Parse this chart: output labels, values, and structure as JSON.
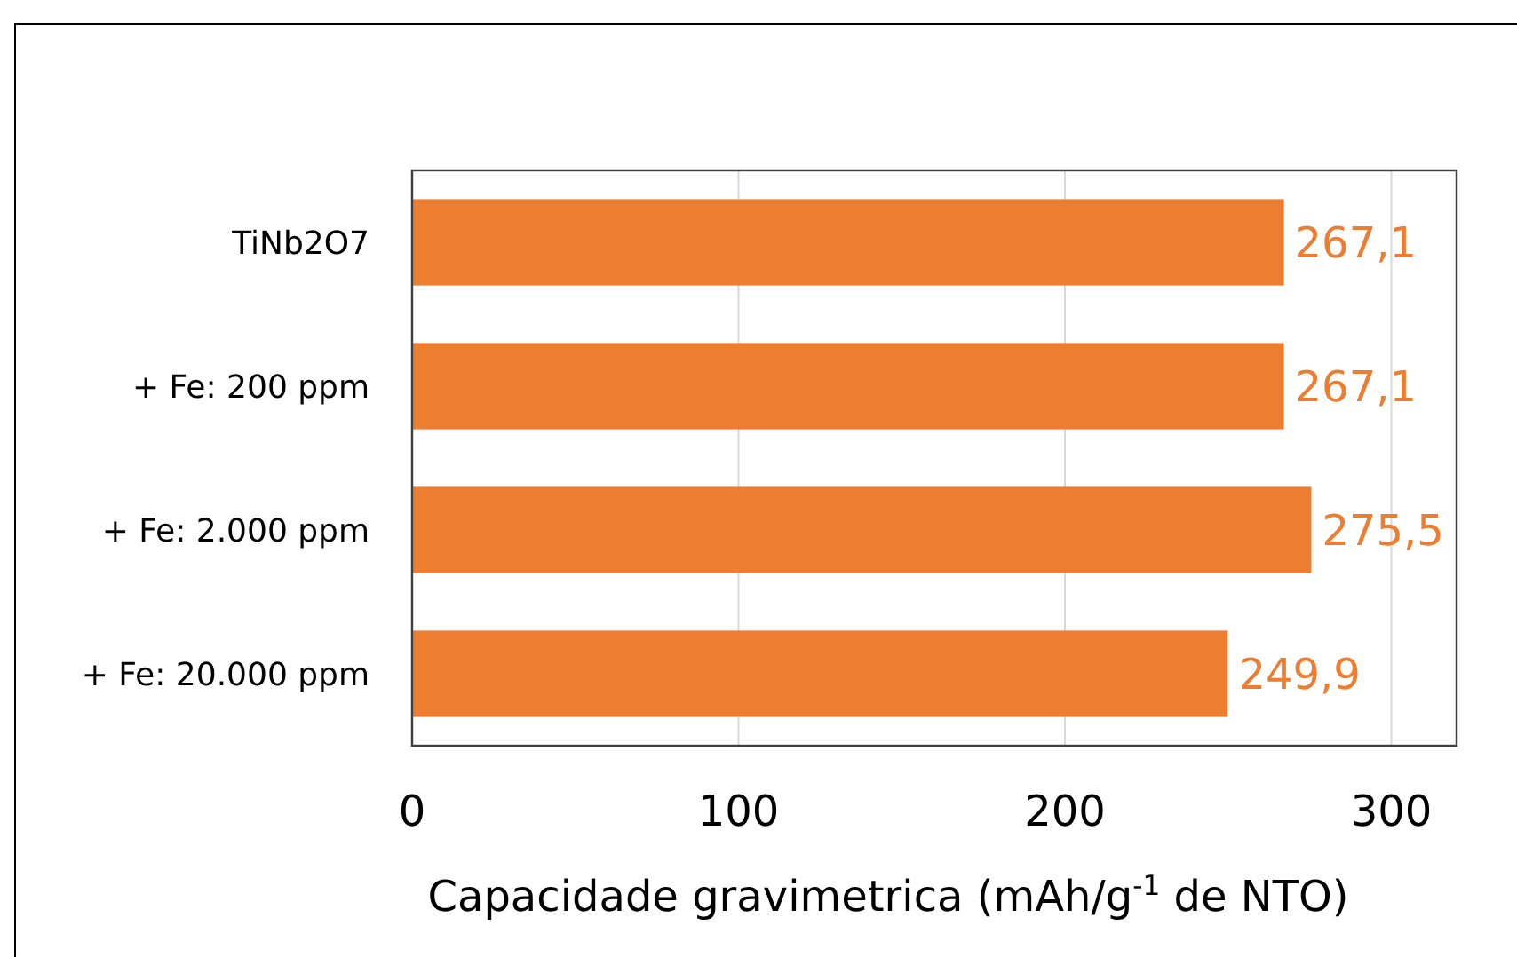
{
  "chart_data": {
    "type": "bar",
    "orientation": "horizontal",
    "categories": [
      "TiNb2O7",
      "+ Fe: 200 ppm",
      "+ Fe: 2.000 ppm",
      "+ Fe: 20.000 ppm"
    ],
    "values": [
      267.1,
      267.1,
      275.5,
      249.9
    ],
    "value_labels": [
      "267,1",
      "267,1",
      "275,5",
      "249,9"
    ],
    "color": "#ed7d31",
    "xlabel": "Capacidade gravimetrica (mAh/g$^{-1}$ de NTO)",
    "xlim": [
      0,
      320
    ],
    "xticks": [
      0,
      100,
      200,
      300
    ],
    "grid": "x"
  }
}
